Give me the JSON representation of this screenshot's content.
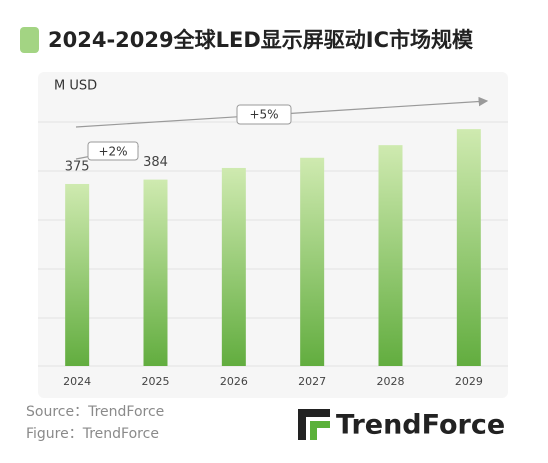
{
  "chart_data": {
    "type": "bar",
    "title": "2024-2029全球LED显示屏驱动IC市场规模",
    "y_label": "M USD",
    "categories": [
      "2024",
      "2025",
      "2026",
      "2027",
      "2028",
      "2029"
    ],
    "values": [
      375,
      384,
      408,
      429,
      455,
      488
    ],
    "value_labels": [
      "375",
      "384",
      null,
      null,
      null,
      null
    ],
    "ylim": [
      0,
      548
    ],
    "color_top": "#cfeab0",
    "color_bottom": "#62ad3f",
    "annotations": [
      "+2%",
      "+5%"
    ],
    "source": "Source：TrendForce",
    "figure": "Figure：TrendForce",
    "logo": "TrendForce"
  }
}
